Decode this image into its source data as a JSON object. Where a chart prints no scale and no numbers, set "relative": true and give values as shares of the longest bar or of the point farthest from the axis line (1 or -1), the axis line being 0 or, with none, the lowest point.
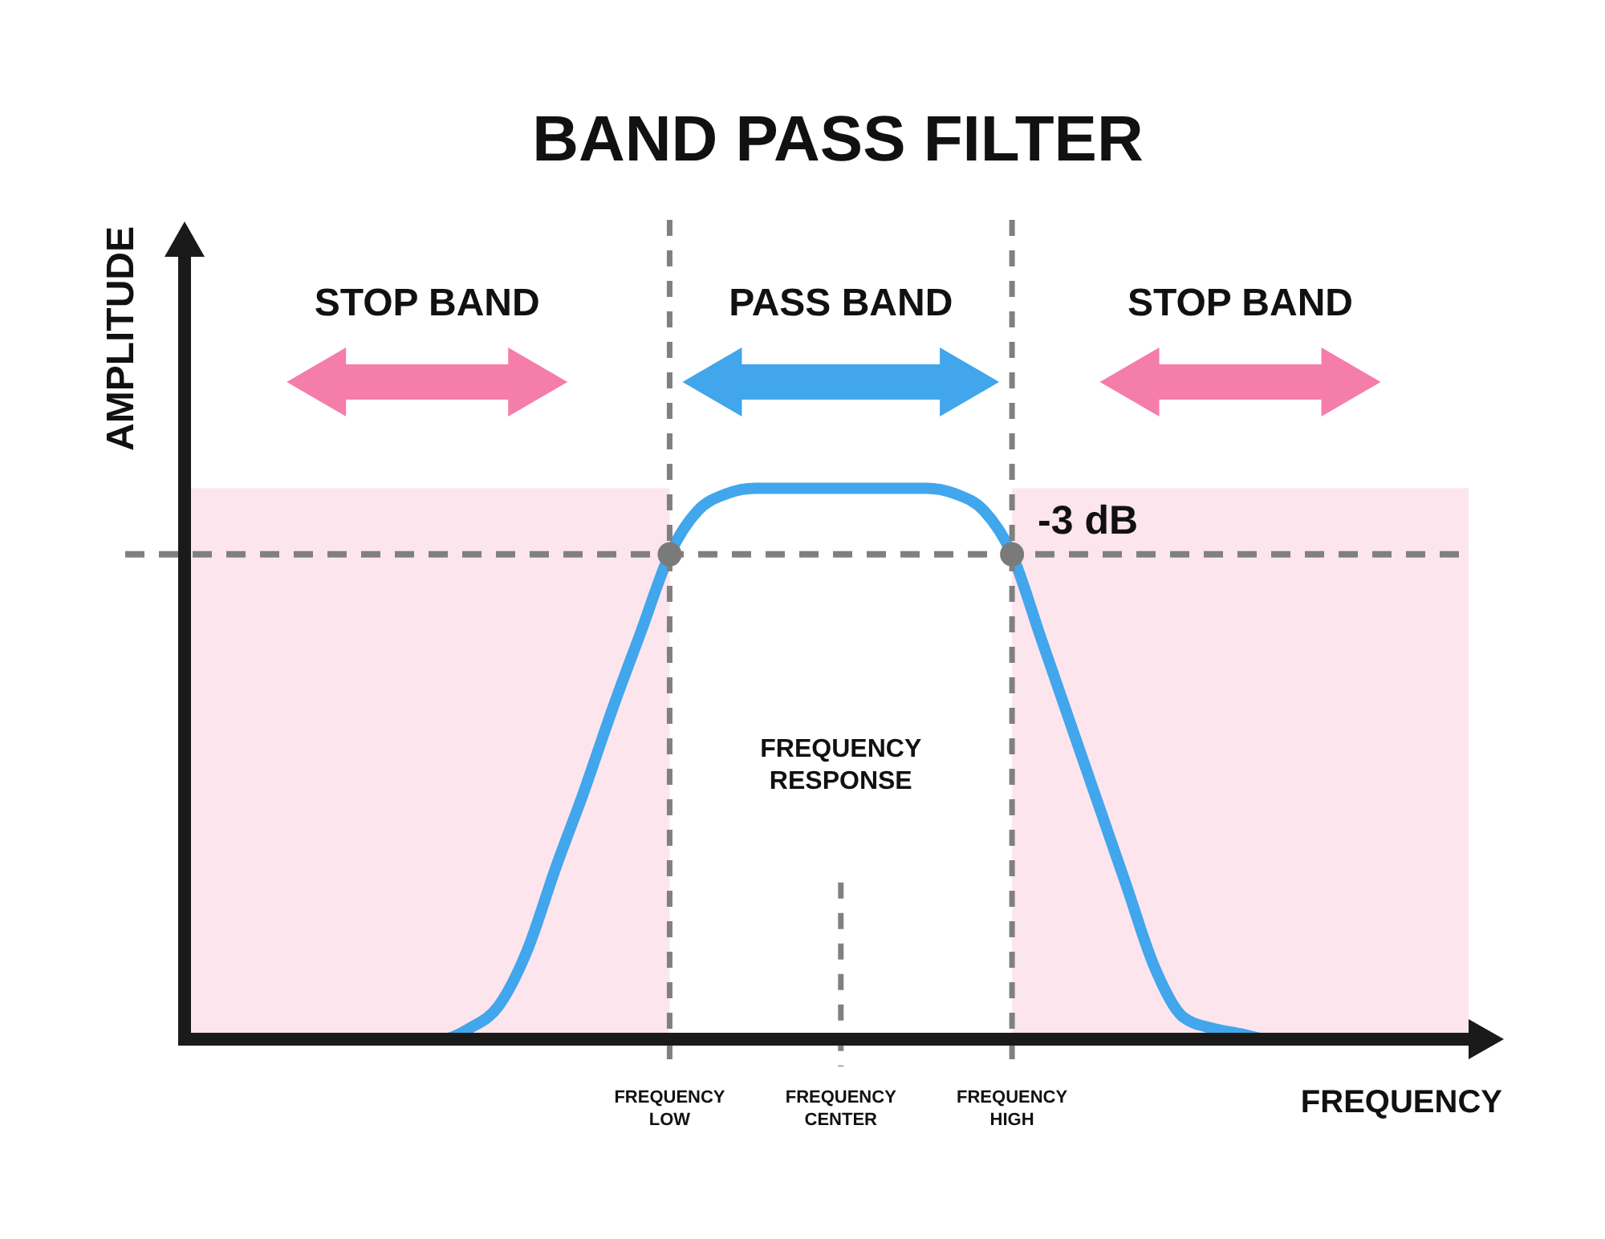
{
  "chart_data": {
    "type": "line",
    "title": "BAND PASS FILTER",
    "xlabel": "FREQUENCY",
    "ylabel": "AMPLITUDE",
    "relative": true,
    "tick_labels": "x",
    "categories": [
      null,
      null,
      null,
      null,
      null,
      null,
      null,
      null,
      null,
      null,
      null,
      null,
      null,
      null,
      null,
      null,
      null,
      "FREQUENCY LOW",
      null,
      null,
      null,
      null,
      null,
      "FREQUENCY CENTER",
      null,
      null,
      null,
      null,
      null,
      "FREQUENCY HIGH",
      null,
      null,
      null,
      null,
      null,
      null,
      null,
      null,
      null,
      null,
      null,
      null,
      null,
      null,
      null,
      null
    ],
    "series": [
      {
        "color": "#41a6ec",
        "values": [
          null,
          null,
          null,
          null,
          null,
          null,
          null,
          null,
          0,
          0,
          0.02,
          0.06,
          0.16,
          0.31,
          0.45,
          0.6,
          0.74,
          0.88,
          0.96,
          0.99,
          1,
          1,
          1,
          1,
          1,
          1,
          1,
          0.99,
          0.96,
          0.88,
          0.73,
          0.58,
          0.43,
          0.28,
          0.13,
          0.04,
          0.02,
          0.01,
          0,
          0,
          null,
          null,
          null,
          null,
          null,
          null
        ]
      },
      {
        "type": "scatter",
        "x": [
          "FREQUENCY LOW",
          "FREQUENCY HIGH"
        ],
        "color": "#7a7a7a",
        "values": [
          0.88,
          0.88
        ]
      },
      {
        "type": "area",
        "color": "#fde5ee",
        "values": [
          1,
          1,
          1,
          1,
          1,
          1,
          1,
          1,
          1,
          1,
          1,
          1,
          1,
          1,
          1,
          1,
          1,
          1,
          null,
          null,
          null,
          null,
          null,
          null,
          null,
          null,
          null,
          null,
          null,
          1,
          1,
          1,
          1,
          1,
          1,
          1,
          1,
          1,
          1,
          1,
          1,
          1,
          1,
          1,
          1,
          1
        ]
      }
    ],
    "ref_lines": [
      {
        "axis": "x",
        "value": "FREQUENCY LOW",
        "line_style": "dashed",
        "color": "#808080"
      },
      {
        "axis": "x",
        "value": "FREQUENCY CENTER",
        "line_style": "dashed",
        "color": "#808080"
      },
      {
        "axis": "x",
        "value": "FREQUENCY HIGH",
        "line_style": "dashed",
        "color": "#808080"
      },
      {
        "axis": "y",
        "value": 0.88,
        "label": "-3 dB",
        "line_style": "dashed",
        "color": "#808080"
      }
    ],
    "annotations": [
      "STOP BAND",
      "PASS BAND",
      "STOP BAND",
      "FREQUENCY RESPONSE"
    ]
  }
}
